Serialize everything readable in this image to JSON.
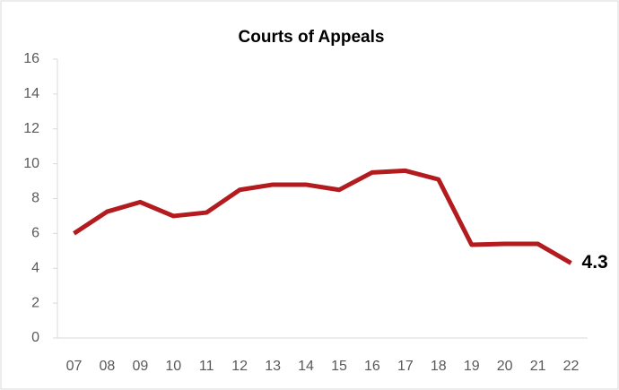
{
  "chart_data": {
    "type": "line",
    "title": "Courts of Appeals",
    "categories": [
      "07",
      "08",
      "09",
      "10",
      "11",
      "12",
      "13",
      "14",
      "15",
      "16",
      "17",
      "18",
      "19",
      "20",
      "21",
      "22"
    ],
    "series": [
      {
        "name": "Courts of Appeals",
        "color": "#b31b1e",
        "values": [
          6.0,
          7.25,
          7.8,
          7.0,
          7.2,
          8.5,
          8.8,
          8.8,
          8.5,
          9.5,
          9.6,
          9.1,
          5.35,
          5.4,
          5.4,
          4.3
        ]
      }
    ],
    "ylim": [
      0,
      16
    ],
    "yticks": [
      0,
      2,
      4,
      6,
      8,
      10,
      12,
      14,
      16
    ],
    "grid": false
  }
}
